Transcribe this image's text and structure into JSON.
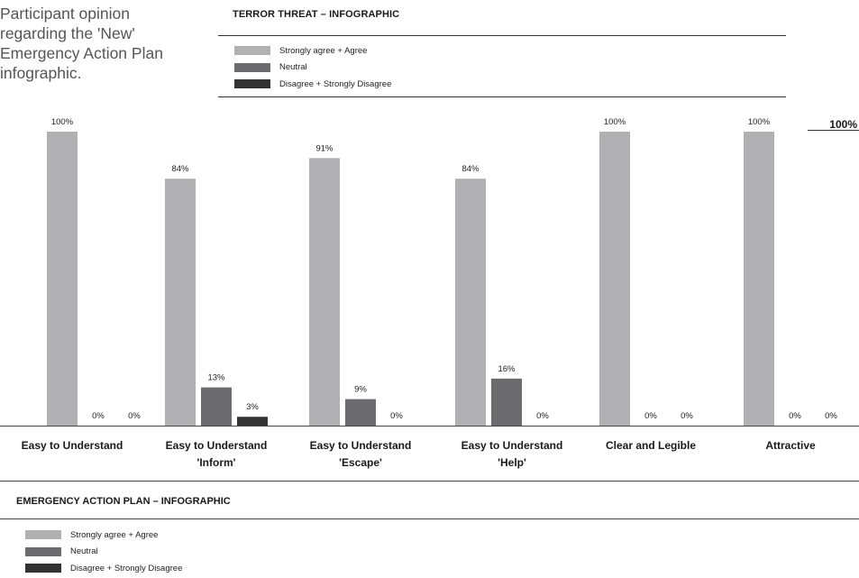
{
  "caption": "Participant opinion regarding the 'New' Emergency Action Plan infographic.",
  "top_section": {
    "title": "TERROR THREAT – INFOGRAPHIC"
  },
  "bottom_section": {
    "title": "EMERGENCY ACTION PLAN – INFOGRAPHIC"
  },
  "reference_label": "100%",
  "colors": {
    "agree": "#b1b1b3",
    "neutral": "#6c6c6e",
    "disagree": "#333333"
  },
  "legend": [
    {
      "label": "Strongly agree + Agree",
      "color": "#b1b1b3"
    },
    {
      "label": "Neutral",
      "color": "#6c6c6e"
    },
    {
      "label": "Disagree + Strongly Disagree",
      "color": "#333333"
    }
  ],
  "chart_data": {
    "type": "bar",
    "categories": [
      [
        "Easy to Understand"
      ],
      [
        "Easy to Understand",
        "'Inform'"
      ],
      [
        "Easy to Understand",
        "'Escape'"
      ],
      [
        "Easy to Understand",
        "'Help'"
      ],
      [
        "Clear and Legible"
      ],
      [
        "Attractive"
      ]
    ],
    "series": [
      {
        "name": "Strongly agree + Agree",
        "values": [
          100,
          84,
          91,
          84,
          100,
          100
        ],
        "labels": [
          "100%",
          "84%",
          "91%",
          "84%",
          "100%",
          "100%"
        ]
      },
      {
        "name": "Neutral",
        "values": [
          0,
          13,
          9,
          16,
          0,
          0
        ],
        "labels": [
          "0%",
          "13%",
          "9%",
          "16%",
          "0%",
          "0%"
        ]
      },
      {
        "name": "Disagree + Strongly Disagree",
        "values": [
          0,
          3,
          0,
          0,
          0,
          0
        ],
        "labels": [
          "0%",
          "3%",
          "0%",
          "0%",
          "0%",
          "0%"
        ]
      }
    ],
    "ylim": [
      0,
      100
    ],
    "grid": false,
    "legend_position": "top"
  }
}
